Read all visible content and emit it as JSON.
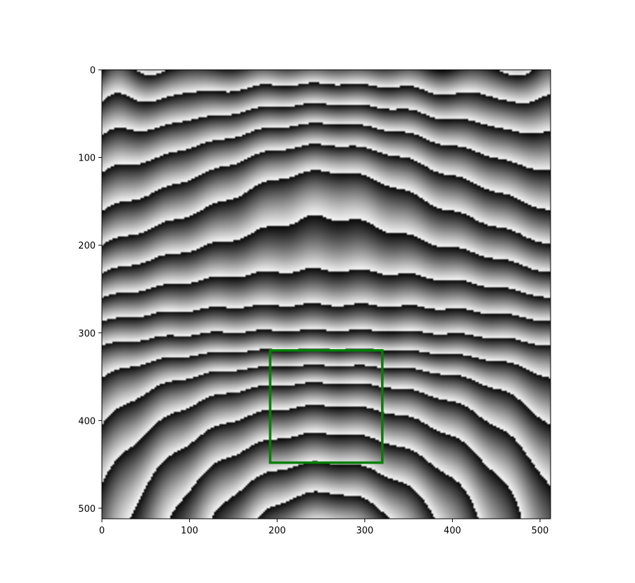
{
  "chart_data": {
    "type": "heatmap",
    "colormap": "gray",
    "image_width": 512,
    "image_height": 512,
    "xlim": [
      0,
      512
    ],
    "ylim": [
      512,
      0
    ],
    "xticks": [
      0,
      100,
      200,
      300,
      400,
      500
    ],
    "yticks": [
      0,
      100,
      200,
      300,
      400,
      500
    ],
    "xtick_labels": [
      "0",
      "100",
      "200",
      "300",
      "400",
      "500"
    ],
    "ytick_labels": [
      "0",
      "100",
      "200",
      "300",
      "400",
      "500"
    ],
    "fringe_pattern": {
      "description": "wrapped phase fringes (light-to-dark sawtooth bands)",
      "band_centers_y": [
        15,
        55,
        125,
        170,
        240,
        268,
        295,
        320
      ],
      "upper_arch_center": [
        255,
        110
      ],
      "lower_dome_center": [
        255,
        430
      ]
    },
    "annotations": [
      {
        "type": "rectangle",
        "color": "#008000",
        "x0": 192,
        "y0": 320,
        "x1": 320,
        "y1": 448
      }
    ],
    "title": "",
    "xlabel": "",
    "ylabel": ""
  }
}
